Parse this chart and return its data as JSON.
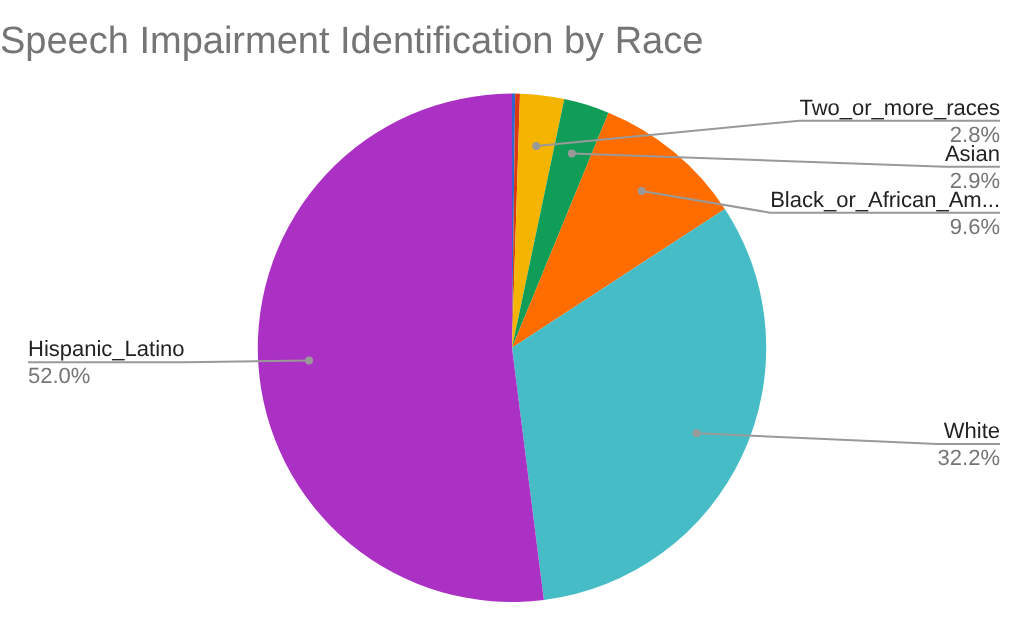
{
  "chart_data": {
    "type": "pie",
    "title": "Speech Impairment Identification by Race",
    "categories": [
      null,
      null,
      "Two_or_more_races",
      "Asian",
      "Black_or_African_Am...",
      "White",
      "Hispanic_Latino"
    ],
    "values": [
      0.2,
      0.3,
      2.8,
      2.9,
      9.6,
      32.2,
      52.0
    ],
    "value_labels": [
      null,
      null,
      "2.8%",
      "2.9%",
      "9.6%",
      "32.2%",
      "52.0%"
    ],
    "colors": [
      "#3366cc",
      "#dc3912",
      "#f4b400",
      "#0f9d58",
      "#ff6d00",
      "#46bdc6",
      "#ab30c4"
    ]
  }
}
